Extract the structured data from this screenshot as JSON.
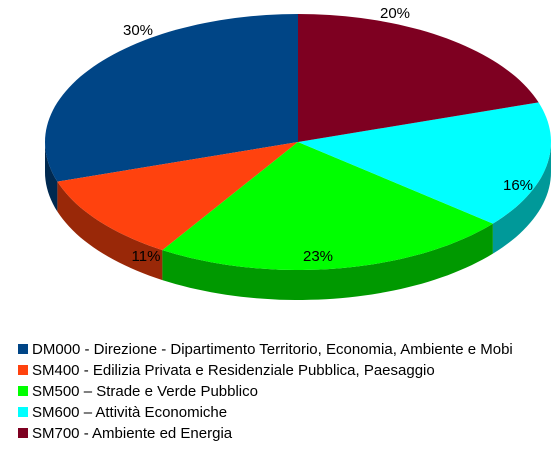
{
  "chart_data": {
    "type": "pie",
    "categories": [
      "DM000 - Direzione - Dipartimento Territorio, Economia, Ambiente e Mobi",
      "SM400 - Edilizia Privata e Residenziale Pubblica, Paesaggio",
      "SM500 – Strade e Verde Pubblico",
      "SM600 – Attività Economiche",
      "SM700 - Ambiente ed Energia"
    ],
    "values": [
      30,
      11,
      23,
      16,
      20
    ],
    "value_labels": [
      "30%",
      "11%",
      "23%",
      "16%",
      "20%"
    ],
    "colors": [
      "#004586",
      "#ff420e",
      "#00ff00",
      "#00ffff",
      "#7e0021"
    ],
    "legend": "bottom-left"
  }
}
